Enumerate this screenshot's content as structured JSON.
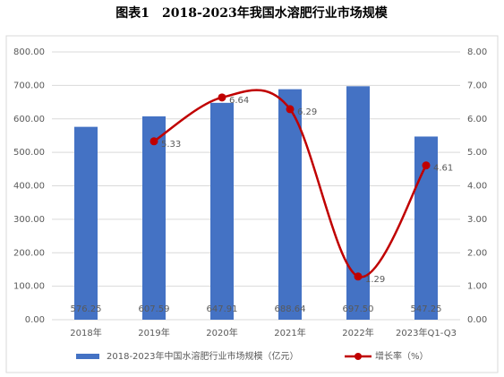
{
  "chart_data": {
    "type": "combo",
    "title": "图表1　2018-2023年我国水溶肥行业市场规模",
    "categories": [
      "2018年",
      "2019年",
      "2020年",
      "2021年",
      "2022年",
      "2023年Q1-Q3"
    ],
    "series": [
      {
        "name": "2018-2023年中国水溶肥行业市场规模（亿元）",
        "type": "bar",
        "color": "#4472c4",
        "axis": "y",
        "values": [
          576.25,
          607.59,
          647.91,
          688.64,
          697.5,
          547.25
        ],
        "value_labels": [
          "576.25",
          "607.59",
          "647.91",
          "688.64",
          "697.50",
          "547.25"
        ]
      },
      {
        "name": "增长率（%）",
        "type": "line",
        "color": "#c00000",
        "axis": "y2",
        "values": [
          null,
          5.33,
          6.64,
          6.29,
          1.29,
          4.61
        ]
      }
    ],
    "ylim": [
      0,
      800
    ],
    "yticks": [
      {
        "value": 0,
        "label": "0.00"
      },
      {
        "value": 100,
        "label": "100.00"
      },
      {
        "value": 200,
        "label": "200.00"
      },
      {
        "value": 300,
        "label": "300.00"
      },
      {
        "value": 400,
        "label": "400.00"
      },
      {
        "value": 500,
        "label": "500.00"
      },
      {
        "value": 600,
        "label": "600.00"
      },
      {
        "value": 700,
        "label": "700.00"
      },
      {
        "value": 800,
        "label": "800.00"
      }
    ],
    "y2lim": [
      0,
      8
    ],
    "y2ticks": [
      {
        "value": 0,
        "label": "0.00"
      },
      {
        "value": 1,
        "label": "1.00"
      },
      {
        "value": 2,
        "label": "2.00"
      },
      {
        "value": 3,
        "label": "3.00"
      },
      {
        "value": 4,
        "label": "4.00"
      },
      {
        "value": 5,
        "label": "5.00"
      },
      {
        "value": 6,
        "label": "6.00"
      },
      {
        "value": 7,
        "label": "7.00"
      },
      {
        "value": 8,
        "label": "8.00"
      }
    ],
    "grid": true,
    "legend": "bottom"
  }
}
